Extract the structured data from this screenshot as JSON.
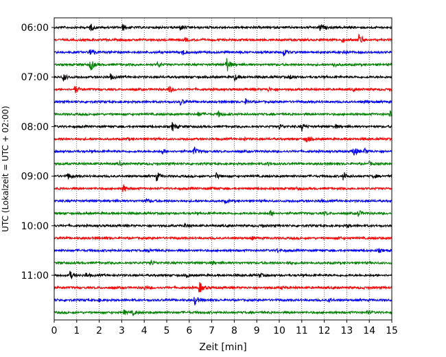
{
  "chart_data": {
    "type": "line",
    "title": "",
    "xlabel": "Zeit  [min]",
    "ylabel": "UTC (Lokalzeit = UTC + 02:00)",
    "xlim": [
      0,
      15
    ],
    "x_ticks": [
      0,
      1,
      2,
      3,
      4,
      5,
      6,
      7,
      8,
      9,
      10,
      11,
      12,
      13,
      14,
      15
    ],
    "x_tick_labels": [
      "0",
      "1",
      "2",
      "3",
      "4",
      "5",
      "6",
      "7",
      "8",
      "9",
      "10",
      "11",
      "12",
      "13",
      "14",
      "15"
    ],
    "y_tick_labels": [
      "06:00",
      "07:00",
      "08:00",
      "09:00",
      "10:00",
      "11:00"
    ],
    "y_tick_row_indices": [
      0,
      4,
      8,
      12,
      16,
      20
    ],
    "trace_interval_min": 15,
    "grid_x": true,
    "grid_style": "dotted",
    "colors_cycle": [
      "#000000",
      "#ff0000",
      "#0000ff",
      "#008000"
    ],
    "traces": [
      {
        "start": "06:00",
        "color": "#000000",
        "events": [
          {
            "t": 1.6,
            "amp": 0.9
          },
          {
            "t": 3.05,
            "amp": 0.8
          },
          {
            "t": 5.6,
            "amp": 0.6
          },
          {
            "t": 11.8,
            "amp": 0.9
          }
        ]
      },
      {
        "start": "06:15",
        "color": "#ff0000",
        "events": [
          {
            "t": 13.55,
            "amp": 1.5
          },
          {
            "t": 12.8,
            "amp": 0.5
          },
          {
            "t": 5.8,
            "amp": 0.4
          }
        ]
      },
      {
        "start": "06:30",
        "color": "#0000ff",
        "events": [
          {
            "t": 1.6,
            "amp": 1.1
          },
          {
            "t": 5.7,
            "amp": 0.7
          },
          {
            "t": 10.2,
            "amp": 0.9
          },
          {
            "t": 12.8,
            "amp": 0.5
          }
        ]
      },
      {
        "start": "06:45",
        "color": "#008000",
        "events": [
          {
            "t": 1.6,
            "amp": 1.6
          },
          {
            "t": 4.6,
            "amp": 0.6
          },
          {
            "t": 7.65,
            "amp": 2.0
          },
          {
            "t": 12.4,
            "amp": 0.6
          }
        ]
      },
      {
        "start": "07:00",
        "color": "#000000",
        "events": [
          {
            "t": 0.4,
            "amp": 0.9
          },
          {
            "t": 2.5,
            "amp": 0.6
          },
          {
            "t": 8.0,
            "amp": 0.8
          },
          {
            "t": 10.5,
            "amp": 0.5
          }
        ]
      },
      {
        "start": "07:15",
        "color": "#ff0000",
        "events": [
          {
            "t": 0.9,
            "amp": 0.9
          },
          {
            "t": 5.1,
            "amp": 0.8
          },
          {
            "t": 9.5,
            "amp": 0.4
          },
          {
            "t": 13.3,
            "amp": 0.4
          }
        ]
      },
      {
        "start": "07:30",
        "color": "#0000ff",
        "events": [
          {
            "t": 5.6,
            "amp": 0.7
          },
          {
            "t": 8.5,
            "amp": 0.5
          },
          {
            "t": 13.8,
            "amp": 0.4
          }
        ]
      },
      {
        "start": "07:45",
        "color": "#008000",
        "events": [
          {
            "t": 6.4,
            "amp": 0.5
          },
          {
            "t": 7.3,
            "amp": 0.6
          },
          {
            "t": 14.9,
            "amp": 0.6
          }
        ]
      },
      {
        "start": "08:00",
        "color": "#000000",
        "events": [
          {
            "t": 5.25,
            "amp": 1.1
          },
          {
            "t": 10.0,
            "amp": 0.6
          },
          {
            "t": 11.0,
            "amp": 0.9
          },
          {
            "t": 12.5,
            "amp": 0.4
          }
        ]
      },
      {
        "start": "08:15",
        "color": "#ff0000",
        "events": [
          {
            "t": 11.2,
            "amp": 0.9
          },
          {
            "t": 3.2,
            "amp": 0.3
          },
          {
            "t": 8.4,
            "amp": 0.3
          }
        ]
      },
      {
        "start": "08:30",
        "color": "#0000ff",
        "events": [
          {
            "t": 4.8,
            "amp": 0.6
          },
          {
            "t": 6.2,
            "amp": 1.0
          },
          {
            "t": 13.3,
            "amp": 1.3
          },
          {
            "t": 13.8,
            "amp": 0.6
          }
        ]
      },
      {
        "start": "08:45",
        "color": "#008000",
        "events": [
          {
            "t": 2.9,
            "amp": 0.4
          },
          {
            "t": 9.5,
            "amp": 0.4
          },
          {
            "t": 14.0,
            "amp": 0.4
          }
        ]
      },
      {
        "start": "09:00",
        "color": "#000000",
        "events": [
          {
            "t": 0.6,
            "amp": 0.8
          },
          {
            "t": 4.55,
            "amp": 1.1
          },
          {
            "t": 7.2,
            "amp": 0.6
          },
          {
            "t": 12.85,
            "amp": 1.0
          },
          {
            "t": 14.2,
            "amp": 0.4
          }
        ]
      },
      {
        "start": "09:15",
        "color": "#ff0000",
        "events": [
          {
            "t": 3.05,
            "amp": 1.0
          },
          {
            "t": 7.0,
            "amp": 0.3
          },
          {
            "t": 10.8,
            "amp": 0.3
          }
        ]
      },
      {
        "start": "09:30",
        "color": "#0000ff",
        "events": [
          {
            "t": 4.1,
            "amp": 0.5
          },
          {
            "t": 7.6,
            "amp": 0.4
          },
          {
            "t": 11.8,
            "amp": 0.3
          }
        ]
      },
      {
        "start": "09:45",
        "color": "#008000",
        "events": [
          {
            "t": 9.6,
            "amp": 0.6
          },
          {
            "t": 13.5,
            "amp": 0.8
          },
          {
            "t": 12.0,
            "amp": 0.3
          }
        ]
      },
      {
        "start": "10:00",
        "color": "#000000",
        "events": [
          {
            "t": 5.8,
            "amp": 0.5
          },
          {
            "t": 9.2,
            "amp": 0.4
          },
          {
            "t": 13.0,
            "amp": 0.3
          }
        ]
      },
      {
        "start": "10:15",
        "color": "#ff0000",
        "events": [
          {
            "t": 2.2,
            "amp": 0.3
          },
          {
            "t": 8.8,
            "amp": 0.3
          },
          {
            "t": 12.6,
            "amp": 0.3
          }
        ]
      },
      {
        "start": "10:30",
        "color": "#0000ff",
        "events": [
          {
            "t": 4.2,
            "amp": 0.4
          },
          {
            "t": 9.9,
            "amp": 0.4
          },
          {
            "t": 14.4,
            "amp": 0.4
          }
        ]
      },
      {
        "start": "10:45",
        "color": "#008000",
        "events": [
          {
            "t": 4.3,
            "amp": 0.5
          },
          {
            "t": 7.0,
            "amp": 0.4
          },
          {
            "t": 10.4,
            "amp": 0.3
          }
        ]
      },
      {
        "start": "11:00",
        "color": "#000000",
        "events": [
          {
            "t": 0.7,
            "amp": 0.9
          },
          {
            "t": 1.4,
            "amp": 0.5
          },
          {
            "t": 5.9,
            "amp": 0.4
          },
          {
            "t": 9.1,
            "amp": 0.5
          }
        ]
      },
      {
        "start": "11:15",
        "color": "#ff0000",
        "events": [
          {
            "t": 4.0,
            "amp": 0.4
          },
          {
            "t": 6.45,
            "amp": 1.4
          },
          {
            "t": 10.1,
            "amp": 0.3
          }
        ]
      },
      {
        "start": "11:30",
        "color": "#0000ff",
        "events": [
          {
            "t": 6.25,
            "amp": 1.2
          },
          {
            "t": 2.0,
            "amp": 0.3
          },
          {
            "t": 12.2,
            "amp": 0.4
          }
        ]
      },
      {
        "start": "11:45",
        "color": "#008000",
        "events": [
          {
            "t": 3.1,
            "amp": 0.5
          },
          {
            "t": 3.5,
            "amp": 0.5
          },
          {
            "t": 13.9,
            "amp": 0.5
          }
        ]
      }
    ]
  }
}
